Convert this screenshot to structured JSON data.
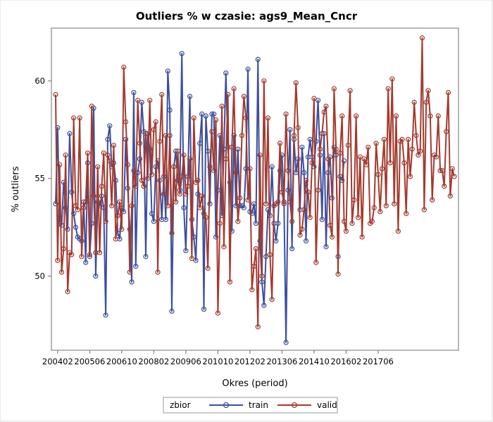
{
  "chart_data": {
    "type": "line",
    "title": "Outliers % w czasie: ags9_Mean_Cncr",
    "xlabel": "Okres (period)",
    "ylabel": "% outliers",
    "x_tick_labels": [
      "200402",
      "200506",
      "200610",
      "200802",
      "200906",
      "201010",
      "201202",
      "201306",
      "201410",
      "201602",
      "201706"
    ],
    "ylim": [
      46.2,
      62.7
    ],
    "y_ticks": [
      50,
      55,
      60
    ],
    "grid": false,
    "legend": {
      "title": "zbior",
      "position": "bottom"
    },
    "start_period": "200401",
    "series": [
      {
        "name": "train",
        "color": "#3b4f9e",
        "values": [
          53.7,
          57.6,
          52.8,
          52.6,
          54.8,
          53.5,
          52.4,
          57.3,
          54.3,
          53.2,
          52.5,
          52.0,
          51.9,
          51.8,
          53.8,
          50.7,
          55.8,
          51.0,
          52.7,
          58.6,
          50.0,
          53.8,
          53.6,
          54.1,
          53.5,
          48.0,
          57.0,
          57.7,
          55.6,
          55.8,
          54.9,
          52.2,
          51.9,
          53.5,
          53.3,
          57.0,
          54.5,
          52.4,
          49.7,
          59.4,
          50.5,
          55.3,
          56.0,
          58.9,
          57.4,
          51.0,
          57.3,
          56.5,
          53.2,
          52.8,
          55.6,
          55.9,
          54.9,
          52.9,
          55.1,
          52.9,
          60.5,
          58.5,
          48.2,
          55.6,
          56.4,
          54.9,
          54.4,
          61.4,
          53.5,
          51.3,
          55.1,
          59.2,
          52.9,
          52.0,
          50.8,
          54.2,
          56.8,
          58.3,
          48.3,
          58.2,
          56.4,
          53.7,
          58.3,
          58.3,
          52.0,
          54.4,
          57.2,
          53.1,
          56.5,
          60.4,
          56.6,
          54.8,
          52.3,
          57.2,
          53.6,
          56.5,
          53.6,
          53.6,
          53.5,
          55.5,
          60.6,
          53.3,
          53.2,
          53.7,
          52.7,
          61.1,
          51.8,
          49.7,
          48.5,
          51.0,
          53.4,
          53.1,
          55.6,
          52.7,
          51.8,
          52.7,
          55.4,
          56.2,
          53.8,
          46.6,
          54.4,
          57.5,
          51.4,
          57.0,
          55.3,
          56.0,
          53.4,
          56.6,
          55.3,
          51.8,
          56.1,
          57.0,
          56.1,
          55.6,
          56.9,
          59.0,
          56.2,
          52.9,
          57.3,
          51.5,
          55.3,
          56.1,
          54.0,
          56.6,
          56.2,
          51.0,
          55.1,
          54.9,
          55.9
        ]
      },
      {
        "name": "valid",
        "color": "#a33a2e",
        "values": [
          59.3,
          50.8,
          55.7,
          50.2,
          51.4,
          56.2,
          49.2,
          51.2,
          51.1,
          58.1,
          53.6,
          53.4,
          58.1,
          51.0,
          53.5,
          53.8,
          56.3,
          51.1,
          58.7,
          54.1,
          51.2,
          55.6,
          51.2,
          54.6,
          56.3,
          52.8,
          56.2,
          55.9,
          53.6,
          56.7,
          51.9,
          53.1,
          53.8,
          52.4,
          60.7,
          57.9,
          55.7,
          50.2,
          53.6,
          55.4,
          54.6,
          59.0,
          56.8,
          54.9,
          54.6,
          57.3,
          55.0,
          59.0,
          55.2,
          57.5,
          57.9,
          50.2,
          56.9,
          59.3,
          54.2,
          57.2,
          53.6,
          57.2,
          52.2,
          55.6,
          53.8,
          56.4,
          54.2,
          55.1,
          56.2,
          54.2,
          54.6,
          56.0,
          50.9,
          58.1,
          54.8,
          54.9,
          53.5,
          54.1,
          53.2,
          53.0,
          50.4,
          55.6,
          57.4,
          55.4,
          58.0,
          48.1,
          52.7,
          58.7,
          51.5,
          56.0,
          59.3,
          49.7,
          56.6,
          59.6,
          55.3,
          52.8,
          54.0,
          57.2,
          59.2,
          58.1,
          53.9,
          55.5,
          49.3,
          50.5,
          51.4,
          47.4,
          56.2,
          50.0,
          60.0,
          53.7,
          58.1,
          51.1,
          48.8,
          53.6,
          53.7,
          53.8,
          56.8,
          54.3,
          53.7,
          58.3,
          55.4,
          53.8,
          52.8,
          57.2,
          59.9,
          57.6,
          52.1,
          52.4,
          53.4,
          54.9,
          54.3,
          53.0,
          55.8,
          59.1,
          50.7,
          54.4,
          56.5,
          57.3,
          58.4,
          58.7,
          56.0,
          52.6,
          52.0,
          59.6,
          56.5,
          50.1,
          56.3,
          58.2,
          52.8,
          52.3,
          56.7,
          59.5,
          52.7,
          53.9,
          58.2,
          53.0,
          56.1,
          52.0,
          56.0,
          55.7,
          56.6,
          52.7,
          52.8,
          53.5,
          56.8,
          55.2,
          53.3,
          55.5,
          57.0,
          53.6,
          59.6,
          55.8,
          60.1,
          53.7,
          58.2,
          52.3,
          56.9,
          57.0,
          55.8,
          53.2,
          57.0,
          55.1,
          56.5,
          58.9,
          57.2,
          56.2,
          56.4,
          62.2,
          53.4,
          58.9,
          59.5,
          58.2,
          53.9,
          56.2,
          56.1,
          58.2,
          55.4,
          55.4,
          54.6,
          57.4,
          59.4,
          54.1,
          55.5,
          55.1
        ]
      }
    ]
  }
}
